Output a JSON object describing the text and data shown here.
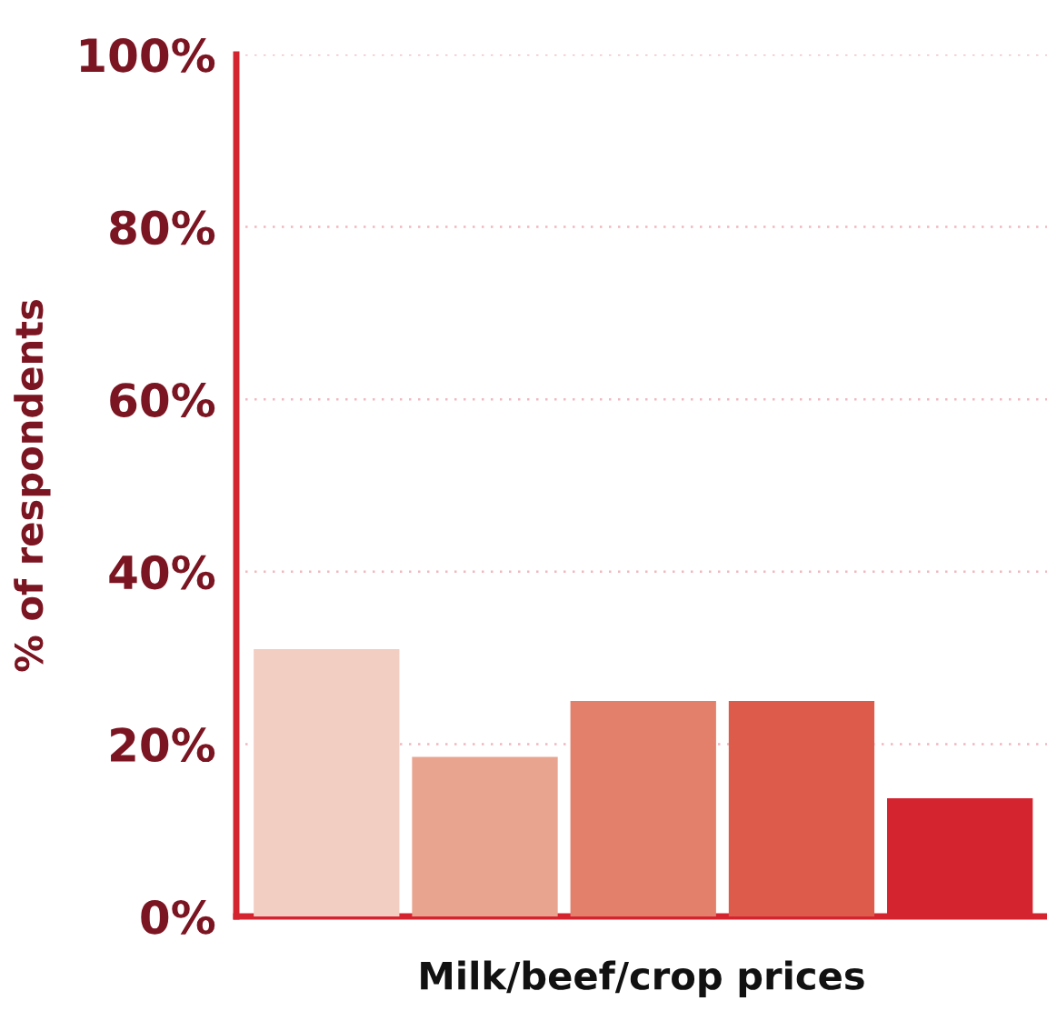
{
  "chart_data": {
    "type": "bar",
    "ylabel": "% of respondents",
    "xlabel": "Milk/beef/crop prices",
    "categories": [
      null,
      null,
      null,
      null,
      null
    ],
    "values": [
      31,
      18.5,
      25,
      25,
      13.7
    ],
    "colors": [
      "#f2cdc1",
      "#e8a48f",
      "#e2806b",
      "#dc5b4b",
      "#d42430"
    ],
    "ylim": [
      0,
      100
    ],
    "yticks": [
      {
        "value": 0,
        "label": "0%"
      },
      {
        "value": 20,
        "label": "20%"
      },
      {
        "value": 40,
        "label": "40%"
      },
      {
        "value": 60,
        "label": "60%"
      },
      {
        "value": 80,
        "label": "80%"
      },
      {
        "value": 100,
        "label": "100%"
      }
    ],
    "grid": "y"
  }
}
